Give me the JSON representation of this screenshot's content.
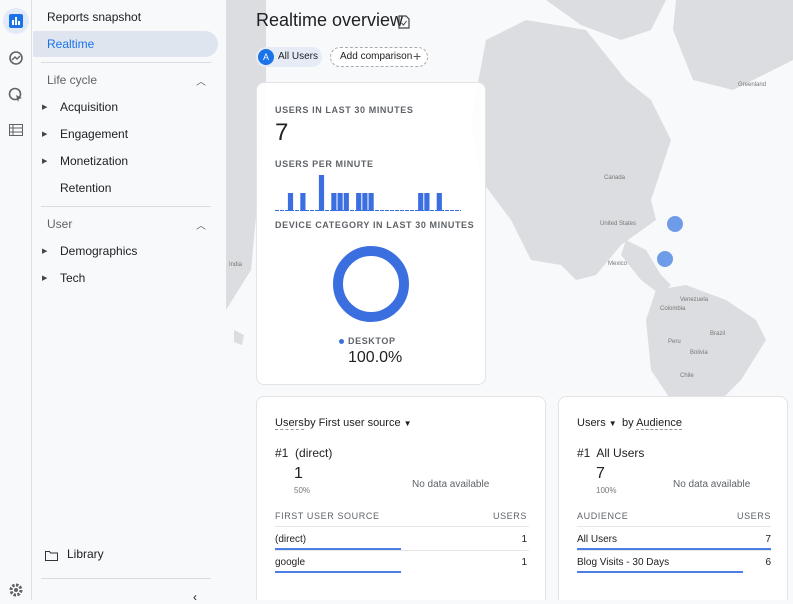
{
  "rail": {
    "icons": [
      "reports-icon",
      "explore-icon",
      "advertising-icon",
      "list-icon",
      "settings-icon"
    ]
  },
  "nav": {
    "reports_snapshot": "Reports snapshot",
    "realtime": "Realtime",
    "lifecycle": {
      "title": "Life cycle",
      "items": [
        "Acquisition",
        "Engagement",
        "Monetization",
        "Retention"
      ]
    },
    "user": {
      "title": "User",
      "items": [
        "Demographics",
        "Tech"
      ]
    },
    "library": "Library"
  },
  "header": {
    "title": "Realtime overview",
    "audience_letter": "A",
    "audience": "All Users",
    "add_comparison": "Add comparison"
  },
  "map": {
    "labels": [
      "Greenland",
      "Canada",
      "United States",
      "Mexico",
      "Venezuela",
      "Colombia",
      "Brazil",
      "Peru",
      "Bolivia",
      "Chile",
      "India"
    ],
    "marker_color": "#6f9ce8"
  },
  "summary": {
    "users_label": "USERS IN LAST 30 MINUTES",
    "users_value": "7",
    "per_minute_label": "USERS PER MINUTE",
    "device_label": "DEVICE CATEGORY IN LAST 30 MINUTES",
    "device_legend": "DESKTOP",
    "device_value": "100.0%"
  },
  "chart_data": [
    {
      "type": "bar",
      "title": "USERS PER MINUTE",
      "values": [
        0,
        0,
        1,
        0,
        1,
        0,
        0,
        2,
        0,
        1,
        1,
        1,
        0,
        1,
        1,
        1,
        0,
        0,
        0,
        0,
        0,
        0,
        0,
        1,
        1,
        0,
        1,
        0,
        0,
        0
      ],
      "color": "#3b6fe0"
    },
    {
      "type": "pie",
      "title": "DEVICE CATEGORY IN LAST 30 MINUTES",
      "categories": [
        "DESKTOP"
      ],
      "values": [
        100.0
      ],
      "donut": true,
      "color": "#3b6fe0"
    }
  ],
  "source_card": {
    "metric": "Users",
    "by": "by First user source",
    "top_rank": "#1",
    "top_name": "(direct)",
    "top_value": "1",
    "top_pct": "50%",
    "no_data": "No data available",
    "col1": "FIRST USER SOURCE",
    "col2": "USERS",
    "rows": [
      {
        "name": "(direct)",
        "value": "1",
        "fill": 1.0
      },
      {
        "name": "google",
        "value": "1",
        "fill": 1.0
      }
    ]
  },
  "audience_card": {
    "metric": "Users",
    "by": "by",
    "dimension": "Audience",
    "top_rank": "#1",
    "top_name": "All Users",
    "top_value": "7",
    "top_pct": "100%",
    "no_data": "No data available",
    "col1": "AUDIENCE",
    "col2": "USERS",
    "rows": [
      {
        "name": "All Users",
        "value": "7",
        "fill": 1.0
      },
      {
        "name": "Blog Visits - 30 Days",
        "value": "6",
        "fill": 0.857
      }
    ]
  }
}
